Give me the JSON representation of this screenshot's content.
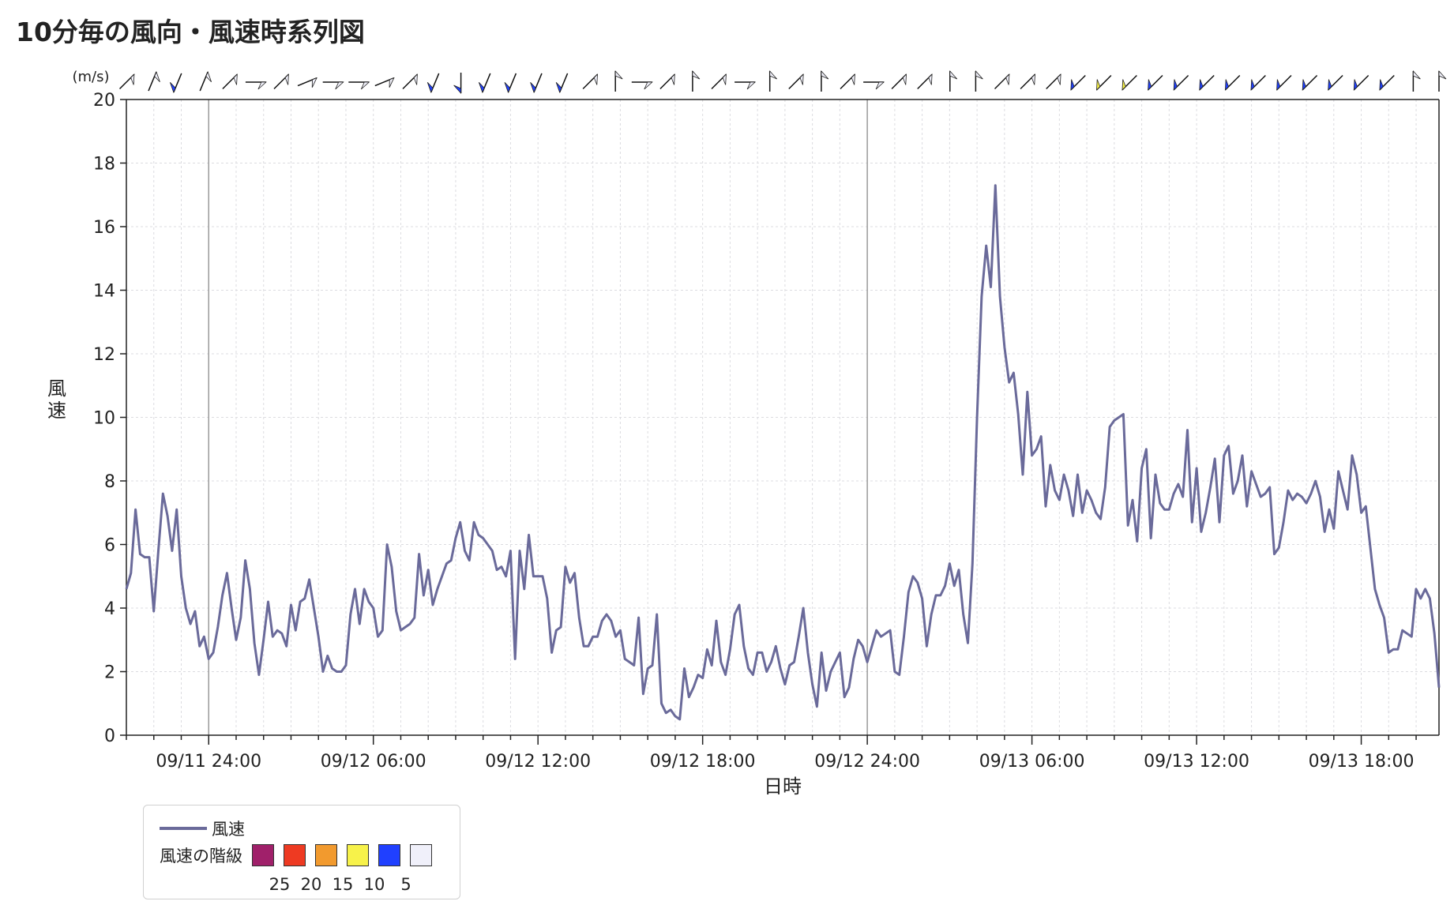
{
  "page": {
    "title": "10分毎の風向・風速時系列図"
  },
  "chart_data": {
    "type": "line",
    "title": "10分毎の風向・風速時系列図",
    "xlabel": "日時",
    "ylabel": "風速",
    "y_unit": "(m/s)",
    "ylim": [
      0,
      20
    ],
    "y_ticks": [
      0,
      2,
      4,
      6,
      8,
      10,
      12,
      14,
      16,
      18,
      20
    ],
    "grid": true,
    "x_start": "09/11 21:00",
    "x_end": "09/13 20:50",
    "x_step_minutes": 10,
    "x_tick_labels": [
      "09/11 24:00",
      "09/12 06:00",
      "09/12 12:00",
      "09/12 18:00",
      "09/12 24:00",
      "09/13 06:00",
      "09/13 12:00",
      "09/13 18:00"
    ],
    "series": [
      {
        "name": "風速",
        "color": "#6a6a9a",
        "values": [
          4.6,
          5.1,
          7.1,
          5.7,
          5.6,
          5.6,
          3.9,
          5.8,
          7.6,
          6.9,
          5.8,
          7.1,
          5.0,
          4.0,
          3.5,
          3.9,
          2.8,
          3.1,
          2.4,
          2.6,
          3.4,
          4.4,
          5.1,
          4.0,
          3.0,
          3.7,
          5.5,
          4.6,
          2.9,
          1.9,
          3.0,
          4.2,
          3.1,
          3.3,
          3.2,
          2.8,
          4.1,
          3.3,
          4.2,
          4.3,
          4.9,
          4.0,
          3.1,
          2.0,
          2.5,
          2.1,
          2.0,
          2.0,
          2.2,
          3.8,
          4.6,
          3.5,
          4.6,
          4.2,
          4.0,
          3.1,
          3.3,
          6.0,
          5.3,
          3.9,
          3.3,
          3.4,
          3.5,
          3.7,
          5.7,
          4.4,
          5.2,
          4.1,
          4.6,
          5.0,
          5.4,
          5.5,
          6.2,
          6.7,
          5.8,
          5.5,
          6.7,
          6.3,
          6.2,
          6.0,
          5.8,
          5.2,
          5.3,
          5.0,
          5.8,
          2.4,
          5.8,
          4.6,
          6.3,
          5.0,
          5.0,
          5.0,
          4.3,
          2.6,
          3.3,
          3.4,
          5.3,
          4.8,
          5.1,
          3.7,
          2.8,
          2.8,
          3.1,
          3.1,
          3.6,
          3.8,
          3.6,
          3.1,
          3.3,
          2.4,
          2.3,
          2.2,
          3.7,
          1.3,
          2.1,
          2.2,
          3.8,
          1.0,
          0.7,
          0.8,
          0.6,
          0.5,
          2.1,
          1.2,
          1.5,
          1.9,
          1.8,
          2.7,
          2.2,
          3.6,
          2.3,
          1.9,
          2.7,
          3.8,
          4.1,
          2.8,
          2.1,
          1.9,
          2.6,
          2.6,
          2.0,
          2.3,
          2.8,
          2.1,
          1.6,
          2.2,
          2.3,
          3.1,
          4.0,
          2.6,
          1.6,
          0.9,
          2.6,
          1.4,
          2.0,
          2.3,
          2.6,
          1.2,
          1.5,
          2.4,
          3.0,
          2.8,
          2.3,
          2.8,
          3.3,
          3.1,
          3.2,
          3.3,
          2.0,
          1.9,
          3.1,
          4.5,
          5.0,
          4.8,
          4.3,
          2.8,
          3.8,
          4.4,
          4.4,
          4.7,
          5.4,
          4.7,
          5.2,
          3.8,
          2.9,
          5.4,
          10.0,
          13.8,
          15.4,
          14.1,
          17.3,
          13.8,
          12.2,
          11.1,
          11.4,
          10.1,
          8.2,
          10.8,
          8.8,
          9.0,
          9.4,
          7.2,
          8.5,
          7.7,
          7.4,
          8.2,
          7.7,
          6.9,
          8.2,
          7.0,
          7.7,
          7.4,
          7.0,
          6.8,
          7.8,
          9.7,
          9.9,
          10.0,
          10.1,
          6.6,
          7.4,
          6.1,
          8.4,
          9.0,
          6.2,
          8.2,
          7.3,
          7.1,
          7.1,
          7.6,
          7.9,
          7.5,
          9.6,
          6.7,
          8.4,
          6.4,
          7.0,
          7.8,
          8.7,
          6.7,
          8.8,
          9.1,
          7.6,
          8.0,
          8.8,
          7.2,
          8.3,
          7.9,
          7.5,
          7.6,
          7.8,
          5.7,
          5.9,
          6.7,
          7.7,
          7.4,
          7.6,
          7.5,
          7.3,
          7.6,
          8.0,
          7.5,
          6.4,
          7.1,
          6.5,
          8.3,
          7.7,
          7.1,
          8.8,
          8.2,
          7.0,
          7.2,
          5.9,
          4.6,
          4.1,
          3.7,
          2.6,
          2.7,
          2.7,
          3.3,
          3.2,
          3.1,
          4.6,
          4.3,
          4.6,
          4.3,
          3.2,
          1.5
        ]
      }
    ],
    "wind_direction": {
      "note": "hourly arrows along the top edge, colored by speed class",
      "codes": [
        "NE",
        "NNE",
        "SSW",
        "NNE",
        "NE",
        "E",
        "NE",
        "ENE",
        "E",
        "E",
        "ENE",
        "NE",
        "SSW",
        "S",
        "SSW",
        "SSW",
        "SSW",
        "SSW",
        "NE",
        "N",
        "E",
        "NE",
        "N",
        "NE",
        "E",
        "N",
        "NE",
        "N",
        "NE",
        "E",
        "NE",
        "NE",
        "N",
        "N",
        "NE",
        "NE",
        "NE",
        "SW",
        "SW",
        "SW",
        "SW",
        "SW",
        "SW",
        "SW",
        "SW",
        "SW",
        "SW",
        "SW",
        "SW",
        "SW",
        "N",
        "N"
      ],
      "speed_classes": [
        "low",
        "low",
        "blue",
        "low",
        "low",
        "low",
        "low",
        "low",
        "low",
        "low",
        "low",
        "low",
        "blue",
        "blue",
        "blue",
        "blue",
        "blue",
        "blue",
        "low",
        "low",
        "low",
        "low",
        "low",
        "low",
        "low",
        "low",
        "low",
        "low",
        "low",
        "low",
        "low",
        "low",
        "low",
        "low",
        "low",
        "low",
        "low",
        "blue",
        "yellow",
        "yellow",
        "blue",
        "blue",
        "blue",
        "blue",
        "blue",
        "blue",
        "blue",
        "blue",
        "blue",
        "blue",
        "low",
        "low"
      ]
    }
  },
  "legend": {
    "series_label": "風速",
    "class_title": "風速の階級",
    "classes": [
      {
        "label": "25",
        "color": "#a0206a"
      },
      {
        "label": "20",
        "color": "#ee3a22"
      },
      {
        "label": "15",
        "color": "#f29a2e"
      },
      {
        "label": "10",
        "color": "#f7f24a"
      },
      {
        "label": "5",
        "color": "#2040ff"
      },
      {
        "label": "",
        "color": "#f0f0fa"
      }
    ]
  }
}
